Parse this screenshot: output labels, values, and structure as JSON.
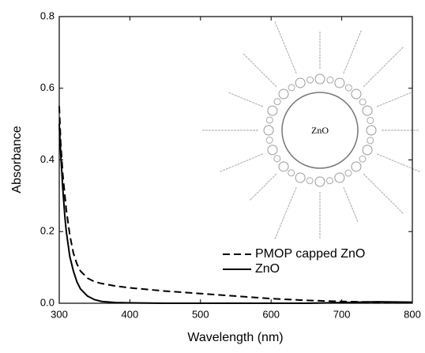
{
  "chart_data": {
    "type": "line",
    "xlabel": "Wavelength (nm)",
    "ylabel": "Absorbance",
    "x": [
      300,
      302,
      305,
      308,
      310,
      315,
      320,
      325,
      330,
      340,
      350,
      360,
      380,
      400,
      450,
      500,
      550,
      600,
      650,
      700,
      750,
      800
    ],
    "series": [
      {
        "name": "PMOP capped ZnO",
        "color": "#000000",
        "dash": true,
        "values": [
          0.55,
          0.45,
          0.36,
          0.3,
          0.26,
          0.19,
          0.14,
          0.11,
          0.09,
          0.07,
          0.06,
          0.055,
          0.048,
          0.043,
          0.034,
          0.027,
          0.02,
          0.013,
          0.008,
          0.005,
          0.003,
          0.002
        ]
      },
      {
        "name": "ZnO",
        "color": "#000000",
        "dash": false,
        "values": [
          0.5,
          0.42,
          0.32,
          0.24,
          0.2,
          0.13,
          0.09,
          0.06,
          0.04,
          0.02,
          0.01,
          0.005,
          0.002,
          0.001,
          0,
          0,
          0,
          0,
          0,
          0.002,
          0.004,
          0.003
        ]
      }
    ],
    "xlim": [
      300,
      800
    ],
    "xticks": [
      300,
      400,
      500,
      600,
      700,
      800
    ],
    "ylim": [
      0,
      0.8
    ],
    "yticks": [
      {
        "value": 0,
        "label": "0.0"
      },
      0.2,
      0.4,
      0.6,
      0.8
    ],
    "grid": false,
    "legend": "lower right",
    "inset_label": "ZnO"
  }
}
